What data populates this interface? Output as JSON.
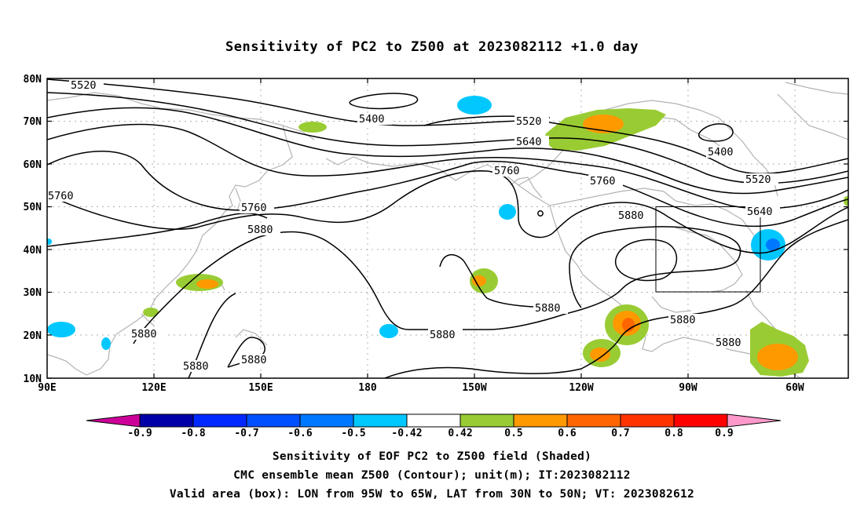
{
  "title": "Sensitivity of PC2 to Z500 at 2023082112 +1.0 day",
  "lat_labels": [
    "80N",
    "70N",
    "60N",
    "50N",
    "40N",
    "30N",
    "20N",
    "10N"
  ],
  "lon_labels": [
    "90E",
    "120E",
    "150E",
    "180",
    "150W",
    "120W",
    "90W",
    "60W"
  ],
  "contour_labels": {
    "c5520a": "5520",
    "c5400a": "5400",
    "c5520b": "5520",
    "c5640a": "5640",
    "c5400b": "5400",
    "c5520c": "5520",
    "c5760a": "5760",
    "c5760b": "5760",
    "c5760c": "5760",
    "c5880a": "5880",
    "c5880b": "5880",
    "c5640b": "5640",
    "c5880c": "5880",
    "c5880d": "5880",
    "c5880e": "5880",
    "c5880f": "5880",
    "c5880g": "5880",
    "c5880h": "5880",
    "c5880i": "5880"
  },
  "colorbar": {
    "labels": [
      "-0.9",
      "-0.8",
      "-0.7",
      "-0.6",
      "-0.5",
      "-0.42",
      "0.42",
      "0.5",
      "0.6",
      "0.7",
      "0.8",
      "0.9"
    ],
    "colors": [
      "#0000a8",
      "#0028ff",
      "#0050ff",
      "#0078ff",
      "#00c8ff",
      "#ffffff",
      "#99cc33",
      "#ff9900",
      "#ff6600",
      "#ff3300",
      "#ff0000"
    ],
    "low_end_color": "#cc0099",
    "high_end_color": "#ff99cc"
  },
  "footer": {
    "line1": "Sensitivity of EOF PC2 to Z500 field (Shaded)",
    "line2": "CMC ensemble mean Z500 (Contour); unit(m); IT:2023082112",
    "line3": "Valid area (box): LON from 95W to 65W, LAT from 30N to 50N; VT: 2023082612"
  }
}
